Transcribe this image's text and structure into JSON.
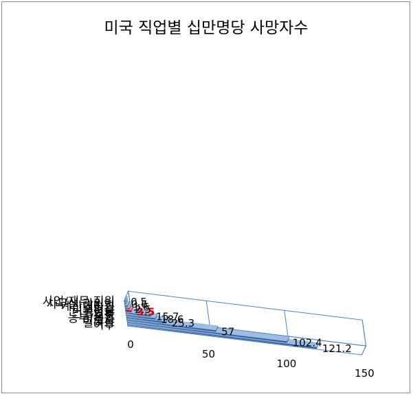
{
  "chart_data": {
    "type": "bar",
    "orientation": "horizontal",
    "title": "미국 직업별 십만명당 사망자수",
    "categories": [
      "사업/재무 직원",
      "사무실 관리인",
      "계산대직원",
      "소방관",
      "미국평균",
      "건설인부",
      "경찰",
      "농부/목동",
      "비행사",
      "벌목공",
      "어부"
    ],
    "values": [
      0.5,
      0.6,
      1.6,
      2.5,
      3.5,
      15.7,
      18.6,
      25.3,
      57,
      102.4,
      121.2
    ],
    "value_labels": [
      "0.5",
      "0.6",
      "1.6",
      "2.5",
      "3.5",
      "15.7",
      "18.6",
      "25.3",
      "57",
      "102.4",
      "121.2"
    ],
    "highlight": "미국평균",
    "xlim": [
      0,
      150
    ],
    "x_ticks": [
      "0",
      "50",
      "100",
      "150"
    ],
    "grid": true,
    "bar_color": "#4f81bd",
    "highlight_color": "#e00000"
  }
}
